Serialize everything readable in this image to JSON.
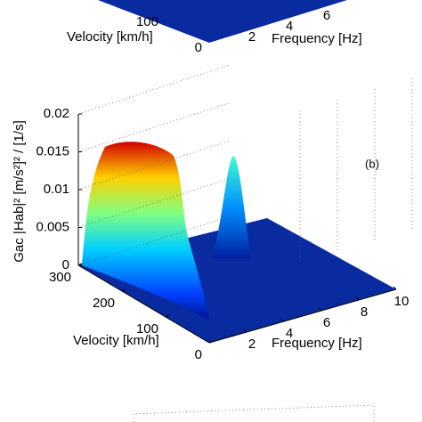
{
  "chart_data": [
    {
      "type": "surface",
      "xlabel": "Frequency [Hz]",
      "ylabel": "Velocity [km/h]",
      "xticks": [
        2,
        4,
        6
      ],
      "yticks": [
        0,
        100
      ]
    },
    {
      "type": "surface",
      "xlabel": "Frequency [Hz]",
      "ylabel": "Velocity [km/h]",
      "zlabel": "Gac |Hab|² [m/s²]² / [1/s]",
      "annotation": "(b)",
      "xlim": [
        0,
        10
      ],
      "xticks": [
        2,
        4,
        6,
        8,
        10
      ],
      "ylim": [
        0,
        300
      ],
      "yticks": [
        0,
        100,
        200,
        300
      ],
      "zlim": [
        0,
        0.02
      ],
      "zticks": [
        0,
        0.005,
        0.01,
        0.015,
        0.02
      ],
      "grid": true
    }
  ]
}
